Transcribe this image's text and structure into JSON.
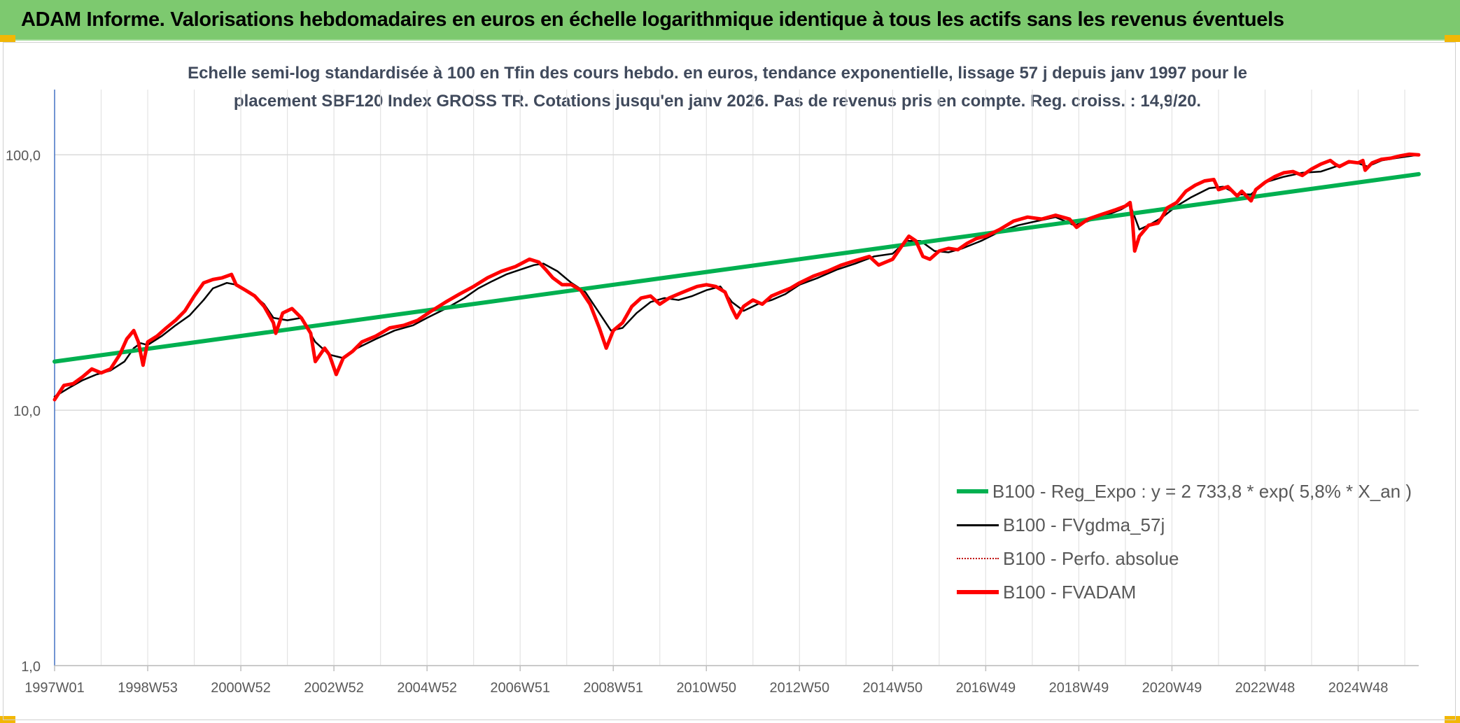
{
  "header": {
    "title": "ADAM Informe. Valorisations hebdomadaires en euros en échelle logarithmique identique à tous les actifs sans les revenus éventuels"
  },
  "chart_data": {
    "type": "line",
    "title": "",
    "subtitle_lines": [
      "Echelle semi-log standardisée à 100 en Tfin des cours hebdo. en euros, tendance exponentielle, lissage 57 j depuis janv 1997 pour le",
      "placement SBF120 Index GROSS TR. Cotations jusqu'en janv 2026. Pas de revenus pris en compte. Reg. croiss. : 14,9/20."
    ],
    "xlabel": "",
    "ylabel": "",
    "y_scale": "log",
    "ylim": [
      1,
      180
    ],
    "y_ticks": [
      {
        "value": 1,
        "label": "1,0"
      },
      {
        "value": 10,
        "label": "10,0"
      },
      {
        "value": 100,
        "label": "100,0"
      }
    ],
    "x_range": [
      1997.0,
      2026.3
    ],
    "x_ticks": [
      {
        "value": 1997.0,
        "label": "1997W01"
      },
      {
        "value": 1999.0,
        "label": "1998W53"
      },
      {
        "value": 2001.0,
        "label": "2000W52"
      },
      {
        "value": 2003.0,
        "label": "2002W52"
      },
      {
        "value": 2005.0,
        "label": "2004W52"
      },
      {
        "value": 2007.0,
        "label": "2006W51"
      },
      {
        "value": 2009.0,
        "label": "2008W51"
      },
      {
        "value": 2011.0,
        "label": "2010W50"
      },
      {
        "value": 2013.0,
        "label": "2012W50"
      },
      {
        "value": 2015.0,
        "label": "2014W50"
      },
      {
        "value": 2017.0,
        "label": "2016W49"
      },
      {
        "value": 2019.0,
        "label": "2018W49"
      },
      {
        "value": 2021.0,
        "label": "2020W49"
      },
      {
        "value": 2023.0,
        "label": "2022W48"
      },
      {
        "value": 2025.0,
        "label": "2024W48"
      }
    ],
    "grid": true,
    "legend_position": "lower-right",
    "series": [
      {
        "name": "B100 - Reg_Expo : y = 2 733,8 * exp( 5,8% *  X_an )",
        "color": "#00b050",
        "style": "solid",
        "width": 6,
        "x": [
          1997.0,
          2026.3
        ],
        "y": [
          15.5,
          84
        ]
      },
      {
        "name": "B100 - FVgdma_57j",
        "color": "#000000",
        "style": "solid",
        "width": 2.5,
        "x": [
          1997.0,
          1997.3,
          1997.6,
          1997.9,
          1998.2,
          1998.5,
          1998.7,
          1998.85,
          1999.0,
          1999.3,
          1999.6,
          1999.9,
          2000.2,
          2000.4,
          2000.7,
          2000.9,
          2001.2,
          2001.5,
          2001.7,
          2002.0,
          2002.3,
          2002.6,
          2002.9,
          2003.2,
          2003.5,
          2003.9,
          2004.3,
          2004.7,
          2005.0,
          2005.4,
          2005.8,
          2006.1,
          2006.4,
          2006.7,
          2007.0,
          2007.3,
          2007.5,
          2007.8,
          2008.1,
          2008.4,
          2008.7,
          2008.95,
          2009.2,
          2009.5,
          2009.8,
          2010.1,
          2010.4,
          2010.7,
          2011.0,
          2011.3,
          2011.55,
          2011.8,
          2012.1,
          2012.4,
          2012.7,
          2013.0,
          2013.4,
          2013.8,
          2014.2,
          2014.6,
          2015.0,
          2015.3,
          2015.6,
          2015.9,
          2016.2,
          2016.5,
          2016.9,
          2017.3,
          2017.7,
          2018.1,
          2018.5,
          2018.9,
          2019.2,
          2019.6,
          2019.9,
          2020.1,
          2020.3,
          2020.5,
          2020.8,
          2021.1,
          2021.4,
          2021.8,
          2022.1,
          2022.4,
          2022.7,
          2023.0,
          2023.4,
          2023.8,
          2024.2,
          2024.6,
          2024.9,
          2025.2,
          2025.5,
          2025.8,
          2026.3
        ],
        "y": [
          11.3,
          12.2,
          13.1,
          13.8,
          14.3,
          15.5,
          17.5,
          18.3,
          18.0,
          19.5,
          21.5,
          23.5,
          27.0,
          30.0,
          31.5,
          31.0,
          29.0,
          26.0,
          23.0,
          22.5,
          23.0,
          18.5,
          16.5,
          16.0,
          17.5,
          19.0,
          20.5,
          21.5,
          23.0,
          25.0,
          27.5,
          30.0,
          32.0,
          34.0,
          35.5,
          37.0,
          37.5,
          35.0,
          31.5,
          29.0,
          24.0,
          20.5,
          21.0,
          24.0,
          26.5,
          27.5,
          27.0,
          28.0,
          29.5,
          30.5,
          26.5,
          24.5,
          26.0,
          27.0,
          28.5,
          31.0,
          33.0,
          35.5,
          37.5,
          40.0,
          41.0,
          46.0,
          46.0,
          42.0,
          41.5,
          43.0,
          46.0,
          50.0,
          53.0,
          55.0,
          57.0,
          53.0,
          55.0,
          58.0,
          61.0,
          64.0,
          51.0,
          53.0,
          57.0,
          63.0,
          68.0,
          74.0,
          75.0,
          70.0,
          70.0,
          78.0,
          82.0,
          85.0,
          86.0,
          91.0,
          94.0,
          90.0,
          95.0,
          97.0,
          100.0
        ]
      },
      {
        "name": "B100 - Perfo. absolue",
        "color": "#c00000",
        "style": "dotted",
        "width": 2,
        "x": [],
        "y": []
      },
      {
        "name": "B100 - FVADAM",
        "color": "#ff0000",
        "style": "solid",
        "width": 5,
        "x": [
          1997.0,
          1997.2,
          1997.4,
          1997.6,
          1997.8,
          1998.0,
          1998.2,
          1998.4,
          1998.55,
          1998.7,
          1998.8,
          1998.9,
          1999.0,
          1999.2,
          1999.4,
          1999.6,
          1999.8,
          2000.0,
          2000.2,
          2000.4,
          2000.6,
          2000.8,
          2000.9,
          2001.1,
          2001.3,
          2001.5,
          2001.7,
          2001.75,
          2001.9,
          2002.1,
          2002.3,
          2002.5,
          2002.6,
          2002.8,
          2002.9,
          2003.05,
          2003.2,
          2003.4,
          2003.6,
          2003.9,
          2004.2,
          2004.5,
          2004.8,
          2005.1,
          2005.4,
          2005.7,
          2006.0,
          2006.3,
          2006.6,
          2006.9,
          2007.2,
          2007.4,
          2007.55,
          2007.7,
          2007.9,
          2008.1,
          2008.3,
          2008.5,
          2008.7,
          2008.85,
          2009.0,
          2009.2,
          2009.4,
          2009.6,
          2009.8,
          2010.0,
          2010.2,
          2010.4,
          2010.6,
          2010.8,
          2011.0,
          2011.2,
          2011.4,
          2011.55,
          2011.65,
          2011.8,
          2012.0,
          2012.2,
          2012.4,
          2012.6,
          2012.8,
          2013.0,
          2013.3,
          2013.6,
          2013.9,
          2014.2,
          2014.5,
          2014.7,
          2015.0,
          2015.2,
          2015.35,
          2015.5,
          2015.65,
          2015.8,
          2016.0,
          2016.2,
          2016.4,
          2016.6,
          2016.8,
          2017.0,
          2017.3,
          2017.6,
          2017.9,
          2018.2,
          2018.5,
          2018.8,
          2018.95,
          2019.2,
          2019.5,
          2019.8,
          2020.0,
          2020.1,
          2020.15,
          2020.2,
          2020.3,
          2020.5,
          2020.7,
          2020.8,
          2020.9,
          2021.1,
          2021.3,
          2021.5,
          2021.7,
          2021.9,
          2022.0,
          2022.2,
          2022.4,
          2022.5,
          2022.7,
          2022.8,
          2023.0,
          2023.2,
          2023.4,
          2023.6,
          2023.8,
          2024.0,
          2024.2,
          2024.4,
          2024.5,
          2024.6,
          2024.8,
          2025.0,
          2025.1,
          2025.15,
          2025.3,
          2025.5,
          2025.7,
          2025.9,
          2026.1,
          2026.3
        ],
        "y": [
          11.0,
          12.5,
          12.7,
          13.5,
          14.5,
          14.0,
          14.5,
          16.5,
          19.0,
          20.5,
          18.5,
          15.0,
          18.5,
          19.5,
          21.0,
          22.5,
          24.5,
          28.0,
          31.5,
          32.5,
          33.0,
          34.0,
          31.0,
          29.5,
          28.0,
          25.5,
          22.0,
          20.0,
          24.0,
          25.0,
          23.0,
          20.0,
          15.5,
          17.5,
          16.5,
          13.8,
          16.0,
          17.0,
          18.5,
          19.5,
          21.0,
          21.5,
          22.5,
          24.5,
          26.5,
          28.5,
          30.5,
          33.0,
          35.0,
          36.5,
          39.0,
          38.0,
          35.5,
          33.0,
          31.0,
          31.0,
          29.5,
          26.0,
          21.0,
          17.5,
          20.5,
          22.0,
          25.5,
          27.5,
          28.0,
          26.0,
          27.5,
          28.5,
          29.5,
          30.5,
          31.0,
          30.5,
          29.0,
          25.0,
          23.0,
          25.5,
          27.0,
          26.0,
          28.0,
          29.0,
          30.0,
          31.5,
          33.5,
          35.0,
          37.0,
          38.5,
          40.0,
          37.0,
          39.0,
          44.0,
          48.0,
          46.0,
          40.0,
          39.0,
          42.0,
          43.0,
          42.5,
          45.0,
          47.0,
          48.0,
          51.0,
          55.0,
          57.0,
          56.0,
          58.0,
          56.0,
          52.0,
          56.0,
          58.5,
          61.0,
          63.0,
          65.0,
          56.0,
          42.0,
          48.0,
          53.0,
          54.0,
          57.5,
          62.0,
          65.0,
          72.0,
          76.0,
          79.0,
          80.0,
          73.0,
          75.0,
          69.0,
          72.0,
          66.0,
          73.0,
          78.0,
          82.0,
          85.0,
          86.0,
          83.0,
          88.0,
          92.0,
          95.0,
          92.0,
          90.0,
          94.0,
          93.0,
          95.0,
          87.0,
          93.0,
          96.0,
          97.0,
          99.0,
          100.5,
          100.0
        ]
      }
    ]
  }
}
